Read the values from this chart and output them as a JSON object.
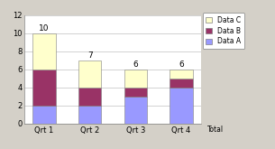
{
  "categories": [
    "Qrt 1",
    "Qrt 2",
    "Qrt 3",
    "Qrt 4"
  ],
  "data_a": [
    2,
    2,
    3,
    4
  ],
  "data_b": [
    4,
    2,
    1,
    1
  ],
  "data_c": [
    4,
    3,
    2,
    1
  ],
  "totals": [
    10,
    7,
    6,
    6
  ],
  "color_a": "#9999FF",
  "color_b": "#993366",
  "color_c": "#FFFFCC",
  "bar_width": 0.5,
  "ylim": [
    0,
    12
  ],
  "yticks": [
    0,
    2,
    4,
    6,
    8,
    10,
    12
  ],
  "legend_labels": [
    "Data C",
    "Data B",
    "Data A"
  ],
  "legend_extra": "Total",
  "bg_color": "#D4D0C8",
  "plot_bg": "#FFFFFF",
  "tick_fontsize": 6.0,
  "legend_fontsize": 5.5,
  "total_fontsize": 6.5
}
